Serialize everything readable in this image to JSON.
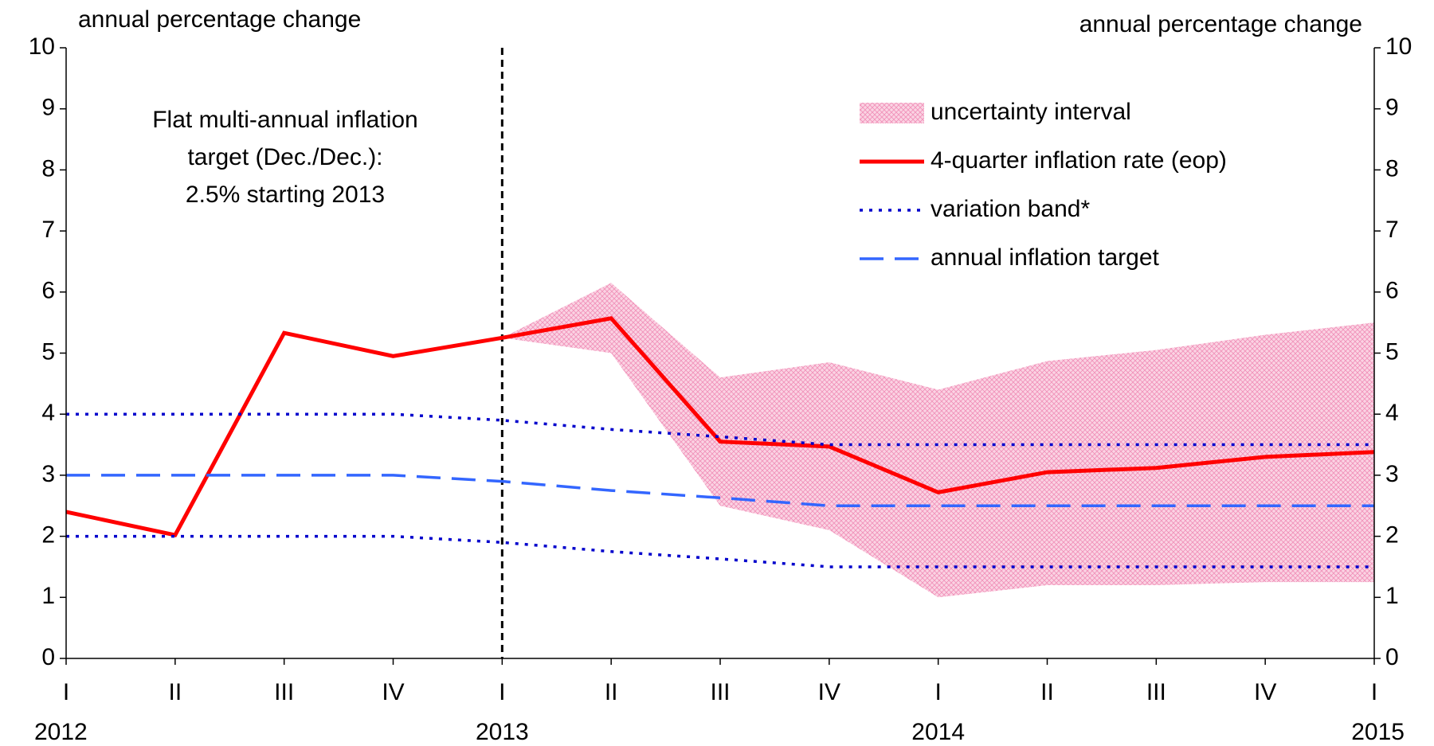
{
  "chart_data": {
    "type": "line",
    "y_label": "annual percentage change",
    "y2_label": "annual percentage change",
    "annotation": [
      "Flat multi-annual inflation",
      "target (Dec./Dec.):",
      "2.5% starting 2013"
    ],
    "categories": [
      "I",
      "II",
      "III",
      "IV",
      "I",
      "II",
      "III",
      "IV",
      "I",
      "II",
      "III",
      "IV",
      "I"
    ],
    "years": [
      "2012",
      null,
      null,
      null,
      "2013",
      null,
      null,
      null,
      "2014",
      null,
      null,
      null,
      "2015"
    ],
    "ylim": [
      0,
      10
    ],
    "yticks": [
      0,
      1,
      2,
      3,
      4,
      5,
      6,
      7,
      8,
      9,
      10
    ],
    "y2lim": [
      0,
      10
    ],
    "y2ticks": [
      0,
      1,
      2,
      3,
      4,
      5,
      6,
      7,
      8,
      9,
      10
    ],
    "series": [
      {
        "name": "uncertainty interval",
        "kind": "band",
        "color": "#f4a6c6",
        "lower": [
          null,
          null,
          null,
          null,
          5.25,
          5.0,
          2.5,
          2.1,
          1.0,
          1.2,
          1.2,
          1.25,
          1.25
        ],
        "upper": [
          null,
          null,
          null,
          null,
          5.25,
          6.15,
          4.6,
          4.85,
          4.4,
          4.87,
          5.05,
          5.3,
          5.5
        ]
      },
      {
        "name": "4-quarter inflation rate (eop)",
        "kind": "line",
        "style": "solid",
        "color": "#ff0000",
        "values": [
          2.4,
          2.02,
          5.33,
          4.95,
          5.25,
          5.57,
          3.55,
          3.47,
          2.72,
          3.05,
          3.12,
          3.3,
          3.38
        ]
      },
      {
        "name": "variation band*",
        "kind": "pair",
        "style": "dotted",
        "color": "#0000cc",
        "upper": [
          4,
          4,
          4,
          4,
          3.9,
          3.75,
          3.63,
          3.5,
          3.5,
          3.5,
          3.5,
          3.5,
          3.5
        ],
        "lower": [
          2,
          2,
          2,
          2,
          1.9,
          1.75,
          1.63,
          1.5,
          1.5,
          1.5,
          1.5,
          1.5,
          1.5
        ]
      },
      {
        "name": "annual inflation target",
        "kind": "line",
        "style": "dashed",
        "color": "#3366ff",
        "values": [
          3,
          3,
          3,
          3,
          2.9,
          2.75,
          2.63,
          2.5,
          2.5,
          2.5,
          2.5,
          2.5,
          2.5
        ]
      }
    ]
  }
}
